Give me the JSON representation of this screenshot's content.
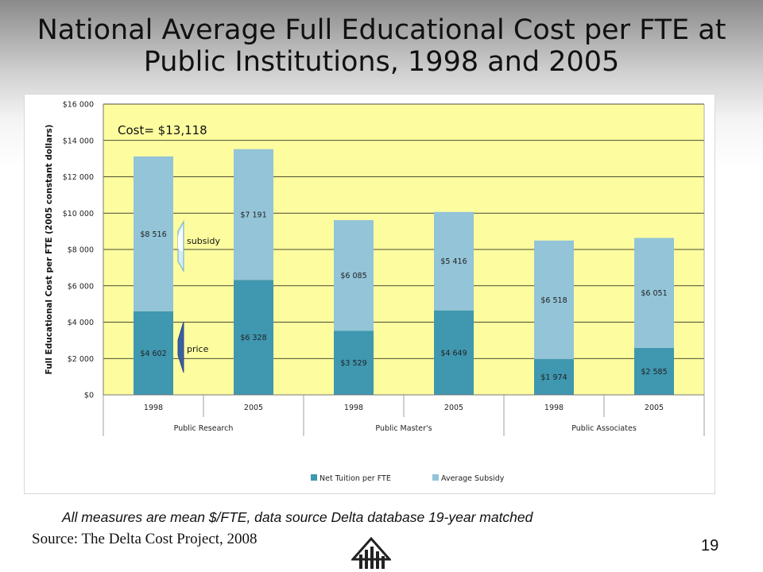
{
  "slide": {
    "title": "National Average Full Educational Cost per FTE at Public Institutions, 1998 and 2005",
    "footnote": "All measures are mean $/FTE, data source Delta database 19-year matched",
    "source": "Source: The Delta Cost Project, 2008",
    "page_number": "19"
  },
  "chart_data": {
    "type": "bar",
    "stacked": true,
    "ylabel": "Full Educational Cost per FTE (2005 constant dollars)",
    "ylim": [
      0,
      16000
    ],
    "yticks": [
      0,
      2000,
      4000,
      6000,
      8000,
      10000,
      12000,
      14000,
      16000
    ],
    "ytick_labels": [
      "$0",
      "$2 000",
      "$4 000",
      "$6 000",
      "$8 000",
      "$10 000",
      "$12 000",
      "$14 000",
      "$16 000"
    ],
    "categories": [
      "1998",
      "2005",
      "1998",
      "2005",
      "1998",
      "2005"
    ],
    "groups": [
      "Public Research",
      "Public Master's",
      "Public Associates"
    ],
    "series": [
      {
        "name": "Net Tuition per FTE",
        "color": "#3f97b0",
        "values": [
          4602,
          6328,
          3529,
          4649,
          1974,
          2585
        ],
        "labels": [
          "$4 602",
          "$6 328",
          "$3 529",
          "$4 649",
          "$1 974",
          "$2 585"
        ]
      },
      {
        "name": "Average Subsidy",
        "color": "#93c4d8",
        "values": [
          8516,
          7191,
          6085,
          5416,
          6518,
          6051
        ],
        "labels": [
          "$8 516",
          "$7 191",
          "$6 085",
          "$5 416",
          "$6 518",
          "$6 051"
        ]
      }
    ],
    "annotations": {
      "cost": "Cost= $13,118",
      "subsidy": "subsidy",
      "price": "price"
    },
    "grid": true,
    "plot_background": "#fdfda0",
    "legend_position": "bottom"
  }
}
